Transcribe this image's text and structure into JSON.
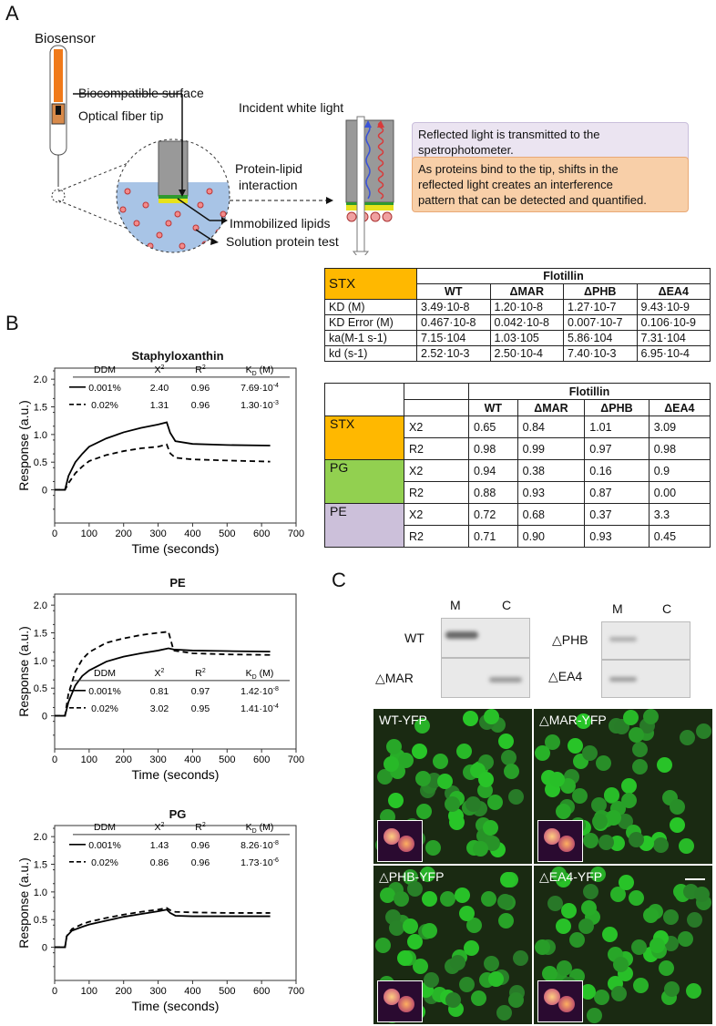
{
  "panels": {
    "a": "A",
    "b": "B",
    "c": "C"
  },
  "diagram": {
    "biosensor": "Biosensor",
    "biocompatible_surface": "Biocompatible surface",
    "optical_fiber_tip": "Optical fiber tip",
    "incident_light": "Incident white light",
    "interaction": "Protein-lipid\ninteraction",
    "interaction_l1": "Protein-lipid",
    "interaction_l2": "interaction",
    "immobilized": "Immobilized lipids",
    "solution": "Solution protein test",
    "box_reflected_l1": "Reflected light is transmitted to the",
    "box_reflected_l2": "spetrophotometer.",
    "box_bind_l1": "As proteins bind to the tip, shifts in the",
    "box_bind_l2": "reflected light creates an interference",
    "box_bind_l3": "pattern that can be detected and quantified.",
    "colors": {
      "fiber": "#f07a1a",
      "solution": "#a8c4e6",
      "lipid": "#e7e21b",
      "green": "#2e9a2e"
    }
  },
  "kinetics_table": {
    "corner": "STX",
    "group": "Flotillin",
    "columns": [
      "WT",
      "ΔMAR",
      "ΔPHB",
      "ΔEA4"
    ],
    "rows": [
      {
        "label": "KD (M)",
        "values": [
          "3.49·10-8",
          "1.20·10-8",
          "1.27·10-7",
          "9.43·10-9"
        ]
      },
      {
        "label": "KD Error (M)",
        "values": [
          "0.467·10-8",
          "0.042·10-8",
          "0.007·10-7",
          "0.106·10-9"
        ]
      },
      {
        "label": "ka(M-1 s-1)",
        "values": [
          "7.15·104",
          "1.03·105",
          "5.86·104",
          "7.31·104"
        ]
      },
      {
        "label": "kd (s-1)",
        "values": [
          "2.52·10-3",
          "2.50·10-4",
          "7.40·10-3",
          "6.95·10-4"
        ]
      }
    ]
  },
  "fit_table": {
    "group": "Flotillin",
    "columns": [
      "WT",
      "ΔMAR",
      "ΔPHB",
      "ΔEA4"
    ],
    "lipids": [
      {
        "name": "STX",
        "color": "#ffb800",
        "rows": [
          {
            "stat": "X2",
            "values": [
              "0.65",
              "0.84",
              "1.01",
              "3.09"
            ]
          },
          {
            "stat": "R2",
            "values": [
              "0.98",
              "0.99",
              "0.97",
              "0.98"
            ]
          }
        ]
      },
      {
        "name": "PG",
        "color": "#92d050",
        "rows": [
          {
            "stat": "X2",
            "values": [
              "0.94",
              "0.38",
              "0.16",
              "0.9"
            ]
          },
          {
            "stat": "R2",
            "values": [
              "0.88",
              "0.93",
              "0.87",
              "0.00"
            ]
          }
        ]
      },
      {
        "name": "PE",
        "color": "#ccc0da",
        "rows": [
          {
            "stat": "X2",
            "values": [
              "0.72",
              "0.68",
              "0.37",
              "3.3"
            ]
          },
          {
            "stat": "R2",
            "values": [
              "0.71",
              "0.90",
              "0.93",
              "0.45"
            ]
          }
        ]
      }
    ]
  },
  "chart_data": [
    {
      "type": "line",
      "title": "Staphyloxanthin",
      "xlabel": "Time (seconds)",
      "ylabel": "Response (a.u.)",
      "xlim": [
        0,
        700
      ],
      "ylim": [
        -0.6,
        2.2
      ],
      "xticks": [
        "0",
        "100",
        "200",
        "300",
        "400",
        "500",
        "600",
        "700"
      ],
      "yticks": [
        "0",
        "0.5",
        "1.0",
        "1.5",
        "2.0"
      ],
      "legend": {
        "headers": [
          "DDM",
          "X2",
          "R2",
          "KD (M)"
        ],
        "rows": [
          {
            "style": "solid",
            "values": [
              "0.001%",
              "2.40",
              "0.96",
              "7.69·10-4"
            ]
          },
          {
            "style": "dashed",
            "values": [
              "0.02%",
              "1.31",
              "0.96",
              "1.30·10-3"
            ]
          }
        ]
      },
      "series": [
        {
          "style": "solid",
          "x": [
            0,
            30,
            40,
            60,
            80,
            100,
            150,
            200,
            250,
            300,
            325,
            335,
            350,
            400,
            500,
            625
          ],
          "y": [
            0,
            0,
            0.25,
            0.5,
            0.65,
            0.78,
            0.93,
            1.04,
            1.12,
            1.18,
            1.22,
            1.03,
            0.88,
            0.83,
            0.81,
            0.8
          ]
        },
        {
          "style": "dashed",
          "x": [
            0,
            30,
            40,
            60,
            80,
            100,
            150,
            200,
            250,
            300,
            325,
            335,
            350,
            400,
            500,
            625
          ],
          "y": [
            0,
            0,
            0.12,
            0.3,
            0.42,
            0.52,
            0.63,
            0.7,
            0.75,
            0.78,
            0.82,
            0.66,
            0.58,
            0.55,
            0.53,
            0.51
          ]
        }
      ]
    },
    {
      "type": "line",
      "title": "PE",
      "xlabel": "Time (seconds)",
      "ylabel": "Response (a.u.)",
      "xlim": [
        0,
        700
      ],
      "ylim": [
        -0.6,
        2.2
      ],
      "xticks": [
        "0",
        "100",
        "200",
        "300",
        "400",
        "500",
        "600",
        "700"
      ],
      "yticks": [
        "0",
        "0.5",
        "1.0",
        "1.5",
        "2.0"
      ],
      "legend": {
        "headers": [
          "DDM",
          "X2",
          "R2",
          "KD (M)"
        ],
        "rows": [
          {
            "style": "solid",
            "values": [
              "0.001%",
              "0.81",
              "0.97",
              "1.42·10-8"
            ]
          },
          {
            "style": "dashed",
            "values": [
              "0.02%",
              "3.02",
              "0.95",
              "1.41·10-4"
            ]
          }
        ]
      },
      "series": [
        {
          "style": "solid",
          "x": [
            0,
            30,
            40,
            60,
            80,
            100,
            150,
            200,
            250,
            300,
            330,
            345,
            400,
            500,
            625
          ],
          "y": [
            0,
            0,
            0.25,
            0.55,
            0.72,
            0.82,
            0.98,
            1.07,
            1.13,
            1.18,
            1.22,
            1.2,
            1.18,
            1.17,
            1.16
          ]
        },
        {
          "style": "dashed",
          "x": [
            0,
            30,
            40,
            60,
            80,
            100,
            150,
            200,
            250,
            300,
            330,
            345,
            400,
            500,
            625
          ],
          "y": [
            0,
            0,
            0.4,
            0.8,
            1.02,
            1.15,
            1.32,
            1.4,
            1.46,
            1.5,
            1.52,
            1.18,
            1.13,
            1.11,
            1.1
          ]
        }
      ]
    },
    {
      "type": "line",
      "title": "PG",
      "xlabel": "Time (seconds)",
      "ylabel": "Response (a.u.)",
      "xlim": [
        0,
        700
      ],
      "ylim": [
        -0.6,
        2.2
      ],
      "xticks": [
        "0",
        "100",
        "200",
        "300",
        "400",
        "500",
        "600",
        "700"
      ],
      "yticks": [
        "0",
        "0.5",
        "1.0",
        "1.5",
        "2.0"
      ],
      "legend": {
        "headers": [
          "DDM",
          "X2",
          "R2",
          "KD (M)"
        ],
        "rows": [
          {
            "style": "solid",
            "values": [
              "0.001%",
              "1.43",
              "0.96",
              "8.26·10-8"
            ]
          },
          {
            "style": "dashed",
            "values": [
              "0.02%",
              "0.86",
              "0.96",
              "1.73·10-6"
            ]
          }
        ]
      },
      "series": [
        {
          "style": "solid",
          "x": [
            0,
            30,
            35,
            50,
            80,
            100,
            150,
            200,
            250,
            300,
            325,
            335,
            350,
            400,
            500,
            625
          ],
          "y": [
            0,
            0,
            0.2,
            0.3,
            0.37,
            0.41,
            0.48,
            0.55,
            0.6,
            0.65,
            0.68,
            0.62,
            0.57,
            0.56,
            0.56,
            0.56
          ]
        },
        {
          "style": "dashed",
          "x": [
            0,
            30,
            35,
            50,
            80,
            100,
            150,
            200,
            250,
            300,
            325,
            335,
            350,
            400,
            500,
            625
          ],
          "y": [
            0,
            0,
            0.2,
            0.33,
            0.42,
            0.46,
            0.53,
            0.59,
            0.64,
            0.68,
            0.71,
            0.67,
            0.64,
            0.63,
            0.62,
            0.62
          ]
        }
      ]
    }
  ],
  "western": {
    "col_m": "M",
    "col_c": "C",
    "lanes": [
      "WT",
      "△MAR",
      "△PHB",
      "△EA4"
    ]
  },
  "microscopy": [
    "WT-YFP",
    "△MAR-YFP",
    "△PHB-YFP",
    "△EA4-YFP"
  ]
}
